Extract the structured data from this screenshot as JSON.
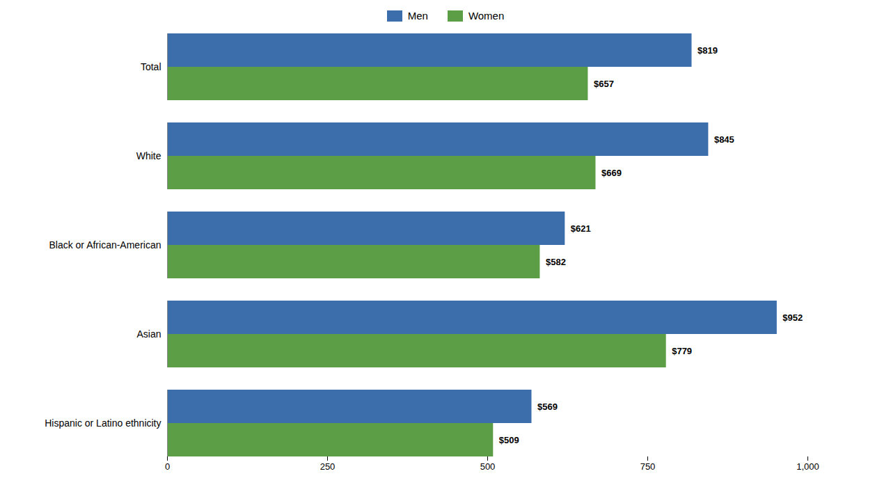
{
  "chart_data": {
    "type": "bar",
    "orientation": "horizontal",
    "categories": [
      "Total",
      "White",
      "Black or African-American",
      "Asian",
      "Hispanic or Latino ethnicity"
    ],
    "series": [
      {
        "name": "Men",
        "color": "#3B6EAA",
        "values": [
          819,
          845,
          621,
          952,
          569
        ],
        "value_labels": [
          "$819",
          "$845",
          "$621",
          "$952",
          "$569"
        ]
      },
      {
        "name": "Women",
        "color": "#5B9E46",
        "values": [
          657,
          669,
          582,
          779,
          509
        ],
        "value_labels": [
          "$657",
          "$669",
          "$582",
          "$779",
          "$509"
        ]
      }
    ],
    "xlim": [
      0,
      1000
    ],
    "xticks": [
      0,
      250,
      500,
      750,
      {
        "value": 1000,
        "label": "1,000"
      }
    ],
    "data_labels": true,
    "legend": "top",
    "grid": false
  }
}
